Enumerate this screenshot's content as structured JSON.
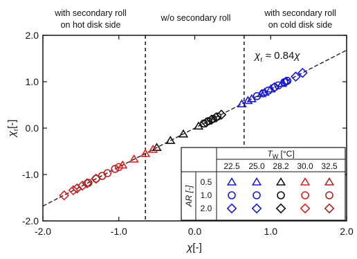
{
  "chart_data": {
    "type": "scatter",
    "xlabel_symbol": "χ",
    "xlabel_unit": "[-]",
    "ylabel_symbol": "χ",
    "ylabel_sub": "r",
    "ylabel_unit": "[-]",
    "xlim": [
      -2.0,
      2.0
    ],
    "ylim": [
      -2.0,
      2.0
    ],
    "x_tick_labels": [
      "-2.0",
      "-1.0",
      "0.0",
      "1.0",
      "2.0"
    ],
    "y_tick_labels": [
      "-2.0",
      "-1.0",
      "0.0",
      "1.0",
      "2.0"
    ],
    "x_ticks": [
      -2.0,
      -1.0,
      0.0,
      1.0,
      2.0
    ],
    "y_ticks": [
      -2.0,
      -1.0,
      0.0,
      1.0,
      2.0
    ],
    "grid": false,
    "region_labels": {
      "left_line1": "with secondary roll",
      "left_line2": "on hot disk side",
      "middle": "w/o secondary roll",
      "right_line1": "with secondary roll",
      "right_line2": "on cold disk side"
    },
    "boundaries_x": [
      -0.65,
      0.65
    ],
    "fit": {
      "label_symbol": "χ",
      "label_sub": "r",
      "label_mid": " ≈ 0.84",
      "label_end": "χ",
      "slope": 0.84
    },
    "legend": {
      "tw_symbol": "T",
      "tw_sub": "W",
      "tw_unit": " [°C]",
      "ar_label": "AR [-]",
      "temperatures": [
        "22.5",
        "25.0",
        "28.2",
        "30.0",
        "32.5"
      ],
      "aspect_ratios": [
        "0.5",
        "1.0",
        "2.0"
      ],
      "colors": [
        "#1a1acc",
        "#1a1acc",
        "#111111",
        "#dd2222",
        "#aa2222"
      ],
      "markers": [
        "triangle",
        "circle",
        "diamond"
      ]
    },
    "series": [
      {
        "tw": "22.5",
        "ar": "0.5",
        "marker": "triangle",
        "color": "#1a1acc",
        "x": [
          0.62,
          0.75,
          0.88,
          1.0
        ],
        "y": [
          0.52,
          0.63,
          0.74,
          0.84
        ]
      },
      {
        "tw": "22.5",
        "ar": "1.0",
        "marker": "circle",
        "color": "#1a1acc",
        "x": [
          0.82,
          0.97,
          1.1,
          1.22
        ],
        "y": [
          0.69,
          0.81,
          0.92,
          1.02
        ]
      },
      {
        "tw": "22.5",
        "ar": "2.0",
        "marker": "diamond",
        "color": "#1a1acc",
        "x": [
          1.05,
          1.2,
          1.33,
          1.42
        ],
        "y": [
          0.88,
          1.0,
          1.11,
          1.19
        ]
      },
      {
        "tw": "28.2",
        "ar": "0.5",
        "marker": "triangle",
        "color": "#111111",
        "x": [
          -0.5,
          -0.32,
          -0.15,
          0.05
        ],
        "y": [
          -0.42,
          -0.27,
          -0.13,
          0.04
        ]
      },
      {
        "tw": "28.2",
        "ar": "1.0",
        "marker": "circle",
        "color": "#111111",
        "x": [
          0.12,
          0.18,
          0.24,
          0.3
        ],
        "y": [
          0.1,
          0.15,
          0.2,
          0.25
        ]
      },
      {
        "tw": "28.2",
        "ar": "2.0",
        "marker": "diamond",
        "color": "#111111",
        "x": [
          0.15,
          0.22,
          0.28,
          0.35
        ],
        "y": [
          0.12,
          0.18,
          0.23,
          0.29
        ]
      },
      {
        "tw": "30.0",
        "ar": "0.5",
        "marker": "triangle",
        "color": "#dd2222",
        "x": [
          -0.95,
          -0.8,
          -0.65,
          -0.55
        ],
        "y": [
          -0.8,
          -0.67,
          -0.55,
          -0.46
        ]
      },
      {
        "tw": "30.0",
        "ar": "1.0",
        "marker": "circle",
        "color": "#dd2222",
        "x": [
          -1.3,
          -1.15,
          -1.0
        ],
        "y": [
          -1.09,
          -0.97,
          -0.84
        ]
      },
      {
        "tw": "30.0",
        "ar": "2.0",
        "marker": "diamond",
        "color": "#dd2222",
        "x": [
          -1.72,
          -1.6,
          -1.48
        ],
        "y": [
          -1.45,
          -1.34,
          -1.24
        ]
      },
      {
        "tw": "32.5",
        "ar": "1.0",
        "marker": "circle",
        "color": "#aa2222",
        "x": [
          -1.4,
          -1.22,
          -1.05
        ],
        "y": [
          -1.18,
          -1.03,
          -0.88
        ]
      },
      {
        "tw": "32.5",
        "ar": "2.0",
        "marker": "diamond",
        "color": "#aa2222",
        "x": [
          -1.55,
          -1.42,
          -1.3
        ],
        "y": [
          -1.3,
          -1.19,
          -1.09
        ]
      },
      {
        "tw": "25.0",
        "ar": "0.5",
        "marker": "triangle",
        "color": "#1a1acc",
        "x": [
          0.7,
          0.92,
          1.15
        ],
        "y": [
          0.59,
          0.77,
          0.96
        ]
      },
      {
        "tw": "25.0",
        "ar": "1.0",
        "marker": "circle",
        "color": "#1a1acc",
        "x": [
          0.9,
          1.05,
          1.18
        ],
        "y": [
          0.75,
          0.88,
          0.99
        ]
      }
    ]
  }
}
